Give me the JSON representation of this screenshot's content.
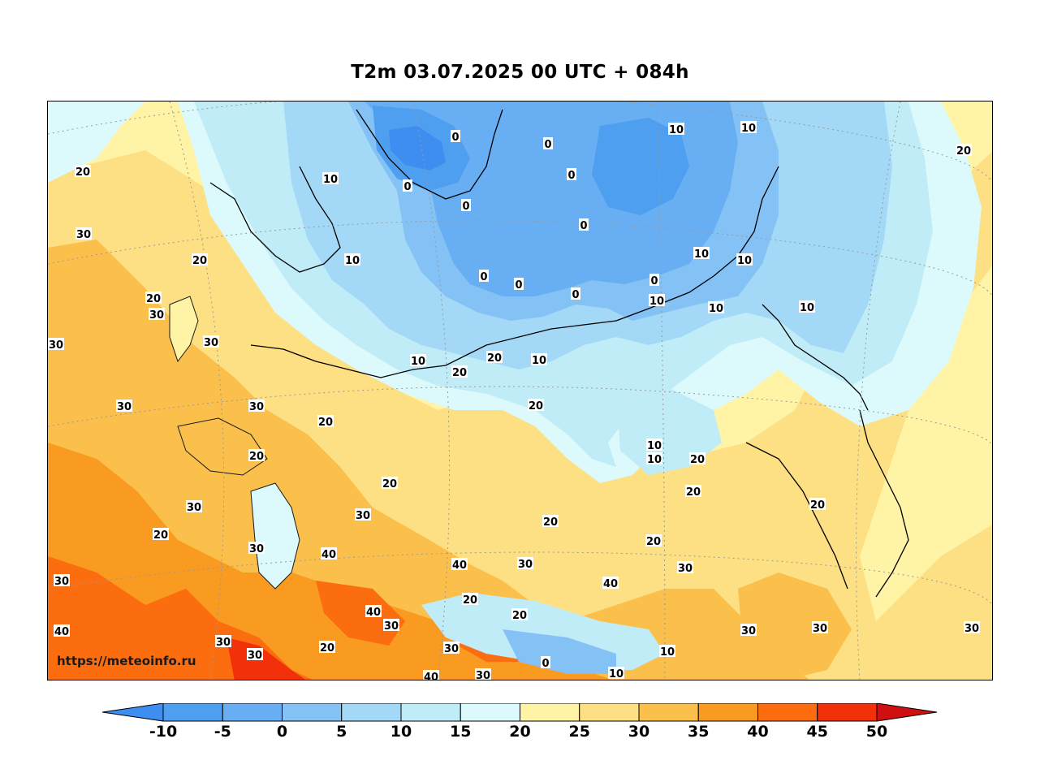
{
  "title": "T2m 03.07.2025 00 UTC + 084h",
  "watermark": "https://meteoinfo.ru",
  "colorbar": {
    "ticks": [
      "-10",
      "-5",
      "0",
      "5",
      "10",
      "15",
      "20",
      "25",
      "30",
      "35",
      "40",
      "45",
      "50"
    ],
    "colors": [
      "#3d8ef0",
      "#4f9ff0",
      "#68aef2",
      "#84c2f5",
      "#a3d9f7",
      "#c0ecf8",
      "#dcfafb",
      "#fff3a6",
      "#fde083",
      "#fbbf4c",
      "#f99a21",
      "#fb6d0e",
      "#f2310a",
      "#d01010"
    ],
    "under_color": "#3d8ef0",
    "over_color": "#d01010"
  },
  "contour_labels": [
    {
      "text": "20"
    },
    {
      "text": "10"
    },
    {
      "text": "0"
    },
    {
      "text": "0"
    },
    {
      "text": "0"
    },
    {
      "text": "0"
    },
    {
      "text": "0"
    },
    {
      "text": "0"
    },
    {
      "text": "10"
    },
    {
      "text": "10"
    },
    {
      "text": "20"
    },
    {
      "text": "30"
    },
    {
      "text": "20"
    },
    {
      "text": "10"
    },
    {
      "text": "0"
    },
    {
      "text": "0"
    },
    {
      "text": "0"
    },
    {
      "text": "0"
    },
    {
      "text": "10"
    },
    {
      "text": "10"
    },
    {
      "text": "10"
    },
    {
      "text": "10"
    },
    {
      "text": "10"
    },
    {
      "text": "20"
    },
    {
      "text": "30"
    },
    {
      "text": "30"
    },
    {
      "text": "30"
    },
    {
      "text": "20"
    },
    {
      "text": "10"
    },
    {
      "text": "20"
    },
    {
      "text": "10"
    },
    {
      "text": "20"
    },
    {
      "text": "20"
    },
    {
      "text": "30"
    },
    {
      "text": "30"
    },
    {
      "text": "20"
    },
    {
      "text": "10"
    },
    {
      "text": "10"
    },
    {
      "text": "20"
    },
    {
      "text": "20"
    },
    {
      "text": "20"
    },
    {
      "text": "20"
    },
    {
      "text": "30"
    },
    {
      "text": "30"
    },
    {
      "text": "20"
    },
    {
      "text": "20"
    },
    {
      "text": "20"
    },
    {
      "text": "30"
    },
    {
      "text": "40"
    },
    {
      "text": "30"
    },
    {
      "text": "40"
    },
    {
      "text": "30"
    },
    {
      "text": "40"
    },
    {
      "text": "40"
    },
    {
      "text": "20"
    },
    {
      "text": "30"
    },
    {
      "text": "30"
    },
    {
      "text": "40"
    },
    {
      "text": "20"
    },
    {
      "text": "30"
    },
    {
      "text": "30"
    },
    {
      "text": "30"
    },
    {
      "text": "20"
    },
    {
      "text": "10"
    },
    {
      "text": "0"
    },
    {
      "text": "30"
    },
    {
      "text": "10"
    },
    {
      "text": "20"
    },
    {
      "text": "30"
    },
    {
      "text": "30"
    },
    {
      "text": "30"
    },
    {
      "text": "40"
    }
  ]
}
